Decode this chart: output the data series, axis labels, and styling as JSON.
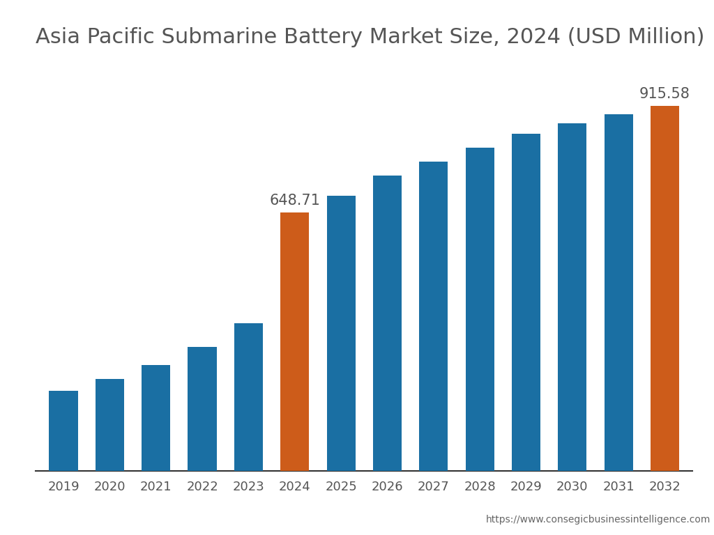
{
  "title": "Asia Pacific Submarine Battery Market Size, 2024 (USD Million)",
  "years": [
    2019,
    2020,
    2021,
    2022,
    2023,
    2024,
    2025,
    2026,
    2027,
    2028,
    2029,
    2030,
    2031,
    2032
  ],
  "values": [
    200,
    230,
    265,
    310,
    370,
    648.71,
    690,
    740,
    775,
    810,
    845,
    872,
    895,
    915.58
  ],
  "bar_colors": [
    "#1a6fa3",
    "#1a6fa3",
    "#1a6fa3",
    "#1a6fa3",
    "#1a6fa3",
    "#cd5c1a",
    "#1a6fa3",
    "#1a6fa3",
    "#1a6fa3",
    "#1a6fa3",
    "#1a6fa3",
    "#1a6fa3",
    "#1a6fa3",
    "#cd5c1a"
  ],
  "highlight_labels": {
    "2024": "648.71",
    "2032": "915.58"
  },
  "annotation_color": "#555555",
  "background_color": "#ffffff",
  "title_fontsize": 22,
  "tick_fontsize": 13,
  "annotation_fontsize": 15,
  "ylim": [
    0,
    1020
  ],
  "watermark": "https://www.consegicbusinessintelligence.com"
}
